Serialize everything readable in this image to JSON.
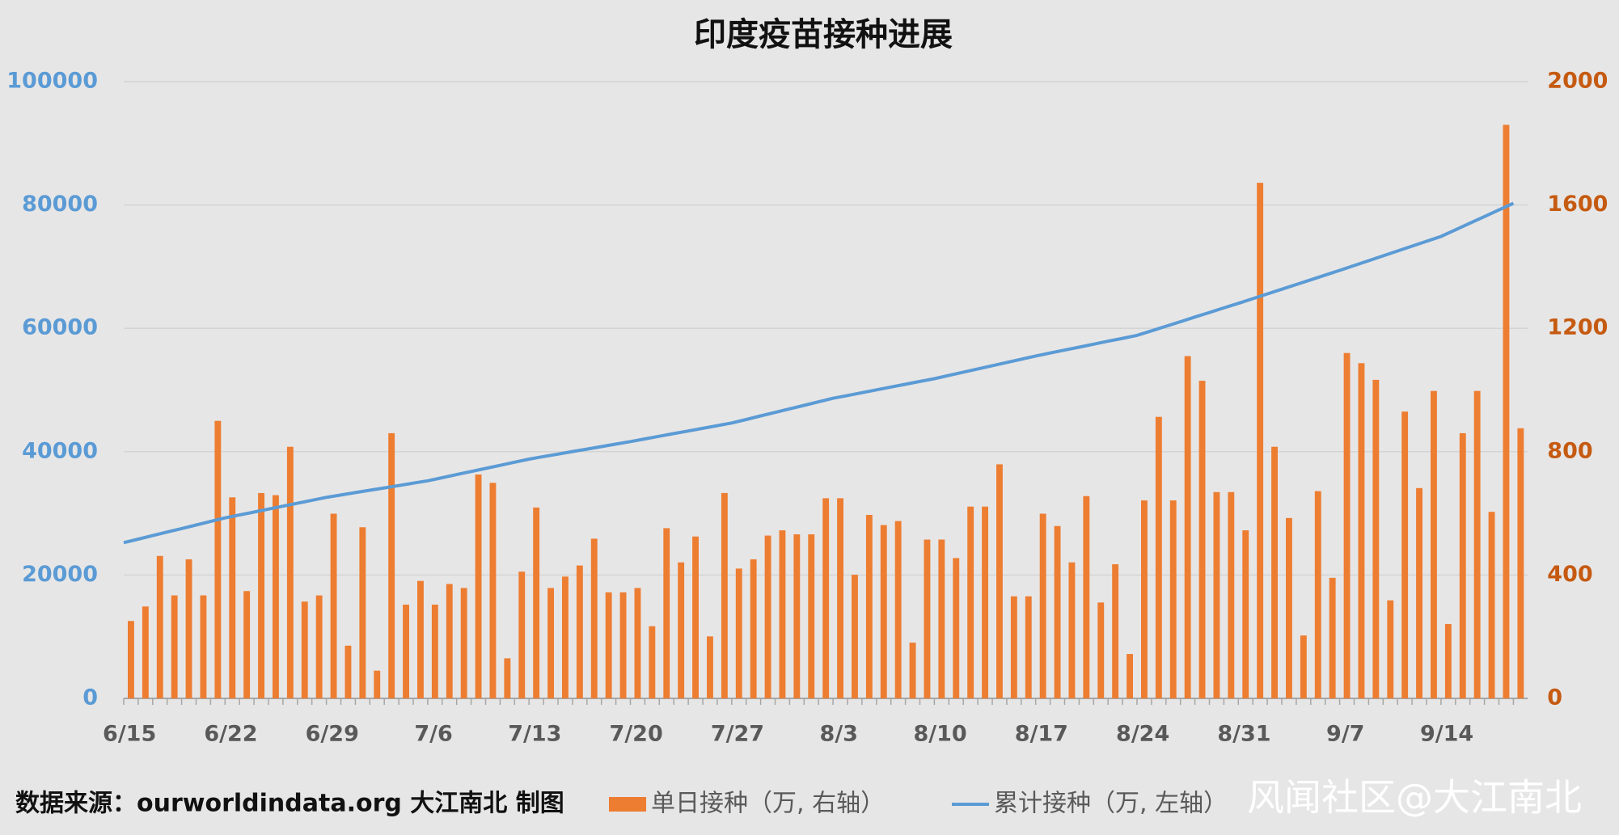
{
  "chart_data": {
    "type": "bar",
    "title": "印度疫苗接种进展",
    "source": "数据来源：ourworldindata.org 大江南北 制图",
    "watermark": "风闻社区@大江南北",
    "categories": [
      "6/15",
      null,
      null,
      null,
      null,
      null,
      null,
      "6/22",
      null,
      null,
      null,
      null,
      null,
      null,
      "6/29",
      null,
      null,
      null,
      null,
      null,
      null,
      "7/6",
      null,
      null,
      null,
      null,
      null,
      null,
      "7/13",
      null,
      null,
      null,
      null,
      null,
      null,
      "7/20",
      null,
      null,
      null,
      null,
      null,
      null,
      "7/27",
      null,
      null,
      null,
      null,
      null,
      null,
      "8/3",
      null,
      null,
      null,
      null,
      null,
      null,
      "8/10",
      null,
      null,
      null,
      null,
      null,
      null,
      "8/17",
      null,
      null,
      null,
      null,
      null,
      null,
      "8/24",
      null,
      null,
      null,
      null,
      null,
      null,
      "8/31",
      null,
      null,
      null,
      null,
      null,
      null,
      "9/7",
      null,
      null,
      null,
      null,
      null,
      null,
      "9/14",
      null,
      null,
      null,
      null,
      null
    ],
    "series": [
      {
        "name": "单日接种（万, 右轴）",
        "type": "bar",
        "axis": "y2",
        "color": "#ed7d31",
        "values": [
          251,
          298,
          462,
          334,
          451,
          334,
          900,
          652,
          348,
          666,
          659,
          816,
          314,
          334,
          599,
          171,
          555,
          90,
          860,
          304,
          381,
          304,
          371,
          358,
          726,
          699,
          130,
          411,
          619,
          358,
          395,
          431,
          518,
          344,
          344,
          358,
          234,
          552,
          441,
          525,
          201,
          666,
          421,
          451,
          528,
          545,
          532,
          532,
          649,
          649,
          401,
          595,
          562,
          575,
          181,
          515,
          515,
          455,
          622,
          622,
          759,
          331,
          331,
          599,
          559,
          441,
          656,
          311,
          435,
          144,
          642,
          913,
          642,
          1110,
          1030,
          669,
          669,
          545,
          1672,
          816,
          585,
          204,
          672,
          391,
          1120,
          1087,
          1033,
          318,
          930,
          682,
          997,
          241,
          860,
          997,
          605,
          1860,
          876
        ]
      },
      {
        "name": "累计接种（万, 左轴）",
        "type": "line",
        "color": "#5b9bd5",
        "values": [
          25250,
          25820,
          26400,
          26970,
          27540,
          28110,
          28690,
          29260,
          29740,
          30210,
          30690,
          31170,
          31640,
          32120,
          32600,
          32980,
          33370,
          33750,
          34130,
          34510,
          34900,
          35280,
          35780,
          36290,
          36790,
          37290,
          37790,
          38300,
          38800,
          39210,
          39610,
          40020,
          40420,
          40830,
          41230,
          41640,
          42070,
          42500,
          42930,
          43360,
          43790,
          44220,
          44650,
          45220,
          45800,
          46370,
          46940,
          47510,
          48090,
          48660,
          49110,
          49570,
          50020,
          50480,
          50930,
          51390,
          51840,
          52370,
          52890,
          53420,
          53940,
          54470,
          54990,
          55520,
          56000,
          56470,
          56950,
          57430,
          57910,
          58380,
          58860,
          59600,
          60340,
          61080,
          61830,
          62570,
          63310,
          64050,
          64810,
          65580,
          66340,
          67110,
          67870,
          68640,
          69400,
          70190,
          70970,
          71760,
          72540,
          73330,
          74110,
          74900,
          75970,
          77050,
          78120,
          79200,
          80270
        ]
      }
    ],
    "ylim": [
      0,
      100000
    ],
    "yticks": [
      0,
      20000,
      40000,
      60000,
      80000,
      100000
    ],
    "ycolor": "#5b9bd5",
    "y2lim": [
      0,
      2000
    ],
    "y2ticks": [
      0,
      400,
      800,
      1200,
      1600,
      2000
    ],
    "y2color": "#c55a11",
    "grid": true
  }
}
